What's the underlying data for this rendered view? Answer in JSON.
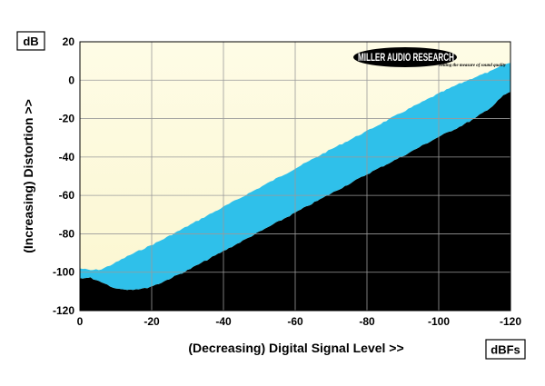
{
  "chart_data": {
    "type": "area",
    "xlabel": "(Decreasing) Digital Signal Level >>",
    "ylabel": "(Increasing) Distortion >>",
    "x_unit": "dBFs",
    "y_unit": "dB",
    "xlim": [
      0,
      -120
    ],
    "ylim": [
      -120,
      20
    ],
    "x_ticks": [
      "0",
      "-20",
      "-40",
      "-60",
      "-80",
      "-100",
      "-120"
    ],
    "y_ticks": [
      "20",
      "0",
      "-20",
      "-40",
      "-60",
      "-80",
      "-100",
      "-120"
    ],
    "grid": true,
    "series": [
      {
        "color": "#2fc0ea",
        "x": [
          0,
          -3,
          -6,
          -10,
          -14,
          -18,
          -22,
          -30,
          -40,
          -50,
          -60,
          -70,
          -80,
          -90,
          -100,
          -105,
          -110,
          -115,
          -118,
          -120
        ],
        "upper": [
          -98,
          -99,
          -98.5,
          -95,
          -91,
          -87.5,
          -84,
          -76,
          -66,
          -56,
          -46,
          -36,
          -26.5,
          -16.5,
          -7,
          -2.5,
          1.5,
          5,
          8,
          9
        ],
        "lower": [
          -103,
          -103,
          -105,
          -108.5,
          -109,
          -108.5,
          -106,
          -99,
          -89,
          -79,
          -69,
          -59,
          -49,
          -39.5,
          -29.5,
          -25,
          -20,
          -13.5,
          -8,
          -6
        ]
      }
    ],
    "background": {
      "upper_gradient": [
        "#fefce6",
        "#fbf6cf"
      ],
      "lower_fill": "#000000"
    }
  },
  "logo": {
    "brand": "MILLER AUDIO RESEARCH",
    "tagline": "Setting the measure of sound quality"
  }
}
